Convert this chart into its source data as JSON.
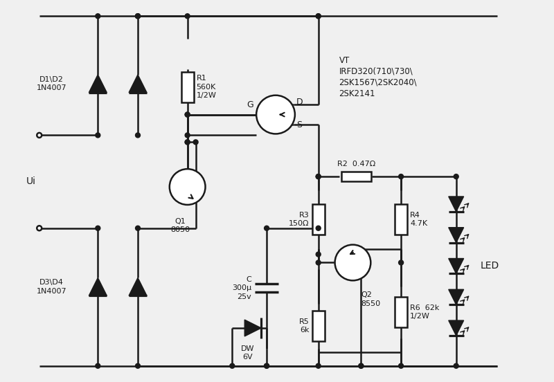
{
  "bg_color": "#f0f0f0",
  "line_color": "#1a1a1a",
  "lw": 1.8,
  "fig_w": 8.0,
  "fig_h": 5.52,
  "dpi": 100,
  "labels": {
    "D1D2": "D1\\D2\n1N4007",
    "D3D4": "D3\\D4\n1N4007",
    "R1": "R1\n560K\n1/2W",
    "R2": "R2  0.47Ω",
    "R3": "R3\n150Ω",
    "R4": "R4\n4.7K",
    "R5": "R5\n6k",
    "R6": "R6  62k\n1/2W",
    "Q1": "Q1\n8050",
    "Q2": "Q2\n8550",
    "C": "C\n300μ\n25v",
    "DW": "DW\n6V",
    "LED": "LED",
    "Ui": "Ui",
    "G": "G",
    "D": "D",
    "S": "S",
    "VT": "VT\nIRFD320(710\\730\\\n2SK1567\\2SK2040\\\n2SK2141"
  }
}
